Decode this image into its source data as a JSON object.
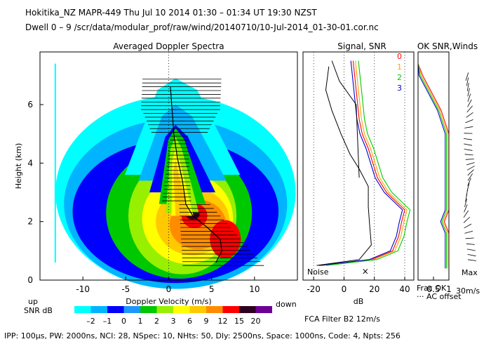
{
  "header": {
    "line1": "Hokitika_NZ   MAPR-449   Thu Jul 10 2014 01:30 – 01:34 UT 19:30 NZST",
    "line2": "Dwell   0 – 9   /scr/data/modular_prof/raw/wind/20140710/10-Jul-2014_01-30-01.cor.nc"
  },
  "footer": {
    "params": "IPP: 100µs,  PW: 2000ns,  NCI:  28,  NSpec: 10,  NHts: 50,  Dly: 2500ns,  Space: 1000ns,  Code: 4,  Npts: 256",
    "filter": "FCA Filter B2 12m/s"
  },
  "colors": {
    "snr_scale": [
      "#00ffff",
      "#00b4ff",
      "#0000ff",
      "#1e96ff",
      "#00c800",
      "#96f000",
      "#ffff00",
      "#ffc800",
      "#ff8c00",
      "#ff0000",
      "#300020",
      "#6e0096"
    ],
    "channels": [
      "#ff0000",
      "#ffa500",
      "#00cc00",
      "#0000cc"
    ]
  },
  "chart_data": [
    {
      "type": "heatmap",
      "title": "Averaged Doppler Spectra",
      "xlabel": "Doppler Velocity (m/s)",
      "ylabel": "Height (km)",
      "xlim": [
        -15,
        15
      ],
      "ylim": [
        0,
        7.8
      ],
      "xticks": [
        -10,
        -5,
        0,
        5,
        10
      ],
      "yticks": [
        0,
        2,
        4,
        6
      ],
      "x_left_note": "up",
      "x_right_note": "down",
      "colorbar": {
        "label": "SNR dB",
        "ticks": [
          "–2",
          "–1",
          "0",
          "1",
          "2",
          "3",
          "6",
          "9",
          "12",
          "15",
          "20"
        ]
      },
      "mean_velocity_profile": {
        "height_km": [
          0.6,
          1.0,
          1.4,
          1.8,
          2.2,
          2.6,
          3.0,
          3.4,
          3.8,
          4.2,
          4.6,
          5.0,
          5.4,
          5.8,
          6.2,
          6.6
        ],
        "velocity_ms": [
          5.5,
          6.2,
          6.0,
          4.5,
          2.8,
          2.0,
          1.8,
          1.6,
          1.3,
          1.0,
          0.8,
          0.6,
          0.5,
          0.4,
          0.3,
          0.2
        ]
      }
    },
    {
      "type": "line",
      "title": "Signal, SNR",
      "xlabel": "dB",
      "xlim": [
        -27,
        46
      ],
      "xticks": [
        -20,
        0,
        20,
        40
      ],
      "series_labels": [
        "0",
        "1",
        "2",
        "3"
      ],
      "noise_label": "Noise",
      "height_km": [
        0.5,
        0.7,
        1.0,
        1.5,
        2.0,
        2.4,
        3.0,
        3.5,
        4.0,
        4.5,
        5.0,
        5.5,
        6.0,
        6.5,
        7.0,
        7.5
      ],
      "snr_db": [
        -15,
        18,
        32,
        36,
        38,
        40,
        28,
        22,
        19,
        16,
        12,
        10,
        9,
        8,
        7,
        6
      ]
    },
    {
      "type": "line",
      "title": "OK SNR,Winds",
      "xlabel": "Frac OK",
      "xticks": [
        "0.5",
        "1"
      ],
      "xticks_value": [
        0.5,
        1
      ],
      "notes": [
        "··· AC offset",
        "Max",
        "30m/s"
      ]
    }
  ]
}
